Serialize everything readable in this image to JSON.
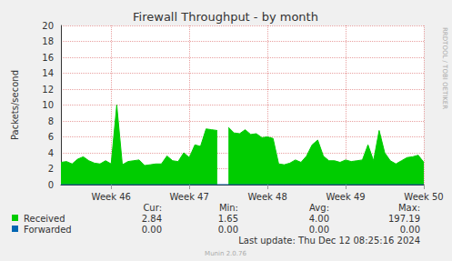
{
  "chart_data": {
    "type": "area",
    "title": "Firewall Throughput - by month",
    "y_label": "Packets/second",
    "categories": [
      null,
      null,
      null,
      null,
      null,
      null,
      null,
      null,
      null,
      "Week 46",
      null,
      null,
      null,
      null,
      null,
      null,
      null,
      null,
      null,
      null,
      null,
      null,
      null,
      "Week 47",
      null,
      null,
      null,
      null,
      null,
      null,
      null,
      null,
      null,
      null,
      null,
      null,
      null,
      "Week 48",
      null,
      null,
      null,
      null,
      null,
      null,
      null,
      null,
      null,
      null,
      null,
      null,
      null,
      "Week 49",
      null,
      null,
      null,
      null,
      null,
      null,
      null,
      null,
      null,
      null,
      null,
      null,
      null,
      "Week 50"
    ],
    "series": [
      {
        "name": "Received",
        "color": "#00cc00",
        "stats": [
          "2.84",
          "1.65",
          "4.00",
          "197.19"
        ],
        "values": [
          2.8,
          2.9,
          2.6,
          3.2,
          3.5,
          3.0,
          2.7,
          2.6,
          3.0,
          2.6,
          10.0,
          2.5,
          2.9,
          3.0,
          3.1,
          2.4,
          2.5,
          2.6,
          2.6,
          3.6,
          3.0,
          2.9,
          4.0,
          3.4,
          5.0,
          4.8,
          7.0,
          6.9,
          6.8,
          null,
          7.2,
          6.5,
          6.4,
          6.9,
          6.3,
          6.4,
          5.9,
          6.0,
          5.8,
          2.6,
          2.5,
          2.7,
          3.1,
          2.8,
          3.6,
          5.0,
          5.6,
          3.6,
          3.0,
          3.0,
          2.8,
          3.1,
          2.9,
          3.0,
          3.1,
          5.0,
          3.0,
          6.8,
          4.0,
          3.0,
          2.6,
          3.0,
          3.4,
          3.5,
          3.7,
          2.8
        ]
      },
      {
        "name": "Forwarded",
        "color": "#0066b3",
        "stats": [
          "0.00",
          "0.00",
          "0.00",
          "0.00"
        ],
        "values": [
          0,
          0,
          0,
          0,
          0,
          0,
          0,
          0,
          0,
          0,
          0,
          0,
          0,
          0,
          0,
          0,
          0,
          0,
          0,
          0,
          0,
          0,
          0,
          0,
          0,
          0,
          0,
          0,
          0,
          0,
          0,
          0,
          0,
          0,
          0,
          0,
          0,
          0,
          0,
          0,
          0,
          0,
          0,
          0,
          0,
          0,
          0,
          0,
          0,
          0,
          0,
          0,
          0,
          0,
          0,
          0,
          0,
          0,
          0,
          0,
          0,
          0,
          0,
          0,
          0,
          0
        ]
      }
    ],
    "stat_headers": [
      "Cur:",
      "Min:",
      "Avg:",
      "Max:"
    ],
    "footer": "Last update: Thu Dec 12 08:25:16 2024",
    "credit": "Munin 2.0.76",
    "watermark": "RRDTOOL / TOBI OETIKER",
    "ylim": [
      0,
      20
    ],
    "yticks": [
      0,
      2,
      4,
      6,
      8,
      10,
      12,
      14,
      16,
      18,
      20
    ],
    "grid": true
  }
}
